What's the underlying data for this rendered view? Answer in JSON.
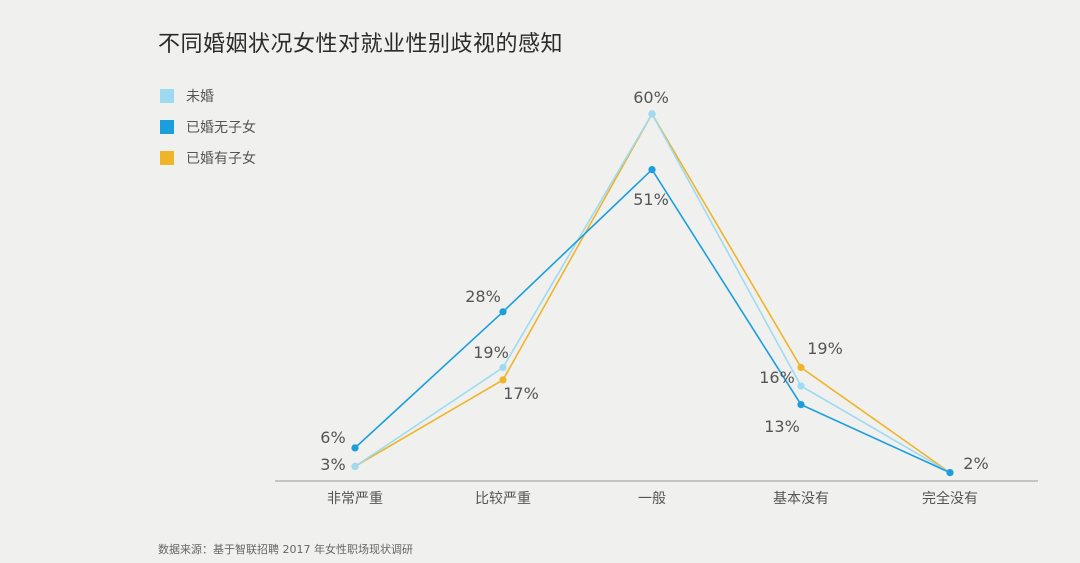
{
  "chart_data": {
    "type": "line",
    "title": "不同婚姻状况女性对就业性别歧视的感知",
    "categories": [
      "非常严重",
      "比较严重",
      "一般",
      "基本没有",
      "完全没有"
    ],
    "series": [
      {
        "name": "未婚",
        "color": "#9edbf2",
        "values": [
          3,
          19,
          60,
          16,
          2
        ]
      },
      {
        "name": "已婚无子女",
        "color": "#1a9fdc",
        "values": [
          6,
          28,
          51,
          13,
          2
        ]
      },
      {
        "name": "已婚有子女",
        "color": "#f0b429",
        "values": [
          3,
          17,
          60,
          19,
          2
        ]
      }
    ],
    "data_labels": [
      {
        "text": "6%"
      },
      {
        "text": "3%"
      },
      {
        "text": "28%"
      },
      {
        "text": "19%"
      },
      {
        "text": "17%"
      },
      {
        "text": "60%"
      },
      {
        "text": "51%"
      },
      {
        "text": "19%"
      },
      {
        "text": "16%"
      },
      {
        "text": "13%"
      },
      {
        "text": "2%"
      }
    ],
    "ylim": [
      0,
      60
    ],
    "grid": false,
    "legend_position": "top-left"
  },
  "source_note": "数据来源：基于智联招聘 2017 年女性职场现状调研"
}
